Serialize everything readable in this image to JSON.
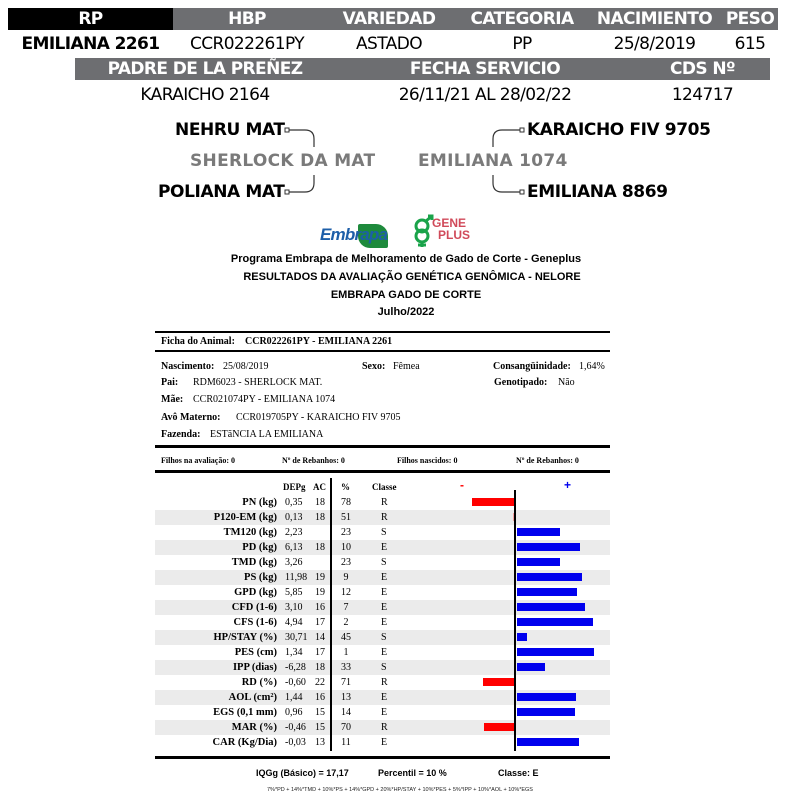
{
  "header": {
    "row1_labels": [
      "RP",
      "HBP",
      "VARIEDAD",
      "CATEGORIA",
      "NACIMIENTO",
      "PESO"
    ],
    "row1_values": [
      "EMILIANA 2261",
      "CCR022261PY",
      "ASTADO",
      "PP",
      "25/8/2019",
      "615"
    ],
    "row2_labels": [
      "PADRE DE LA PREÑEZ",
      "FECHA SERVICIO",
      "CDS Nº"
    ],
    "row2_values": [
      "KARAICHO 2164",
      "26/11/21 AL 28/02/22",
      "124717"
    ]
  },
  "pedigree": {
    "sire": "SHERLOCK DA MAT",
    "sire_sire": "NEHRU MAT",
    "sire_dam": "POLIANA MAT",
    "dam": "EMILIANA 1074",
    "dam_sire": "KARAICHO FIV 9705",
    "dam_dam": "EMILIANA 8869"
  },
  "logos": {
    "embrapa": "Embrapa",
    "geneplus_1": "GENE",
    "geneplus_2": "PLUS"
  },
  "titles": [
    "Programa Embrapa de Melhoramento de Gado de Corte - Geneplus",
    "RESULTADOS DA AVALIAÇÃO GENÉTICA GENÔMICA - NELORE",
    "EMBRAPA GADO DE CORTE",
    "Julho/2022"
  ],
  "ficha": {
    "label": "Ficha do Animal:",
    "value": "CCR022261PY - EMILIANA 2261",
    "nascimento_label": "Nascimento:",
    "nascimento": "25/08/2019",
    "sexo_label": "Sexo:",
    "sexo": "Fêmea",
    "consang_label": "Consangüinidade:",
    "consang": "1,64%",
    "pai_label": "Pai:",
    "pai": "RDM6023 - SHERLOCK MAT.",
    "genotipado_label": "Genotipado:",
    "genotipado": "Não",
    "mae_label": "Mãe:",
    "mae": "CCR021074PY - EMILIANA 1074",
    "avo_label": "Avô Materno:",
    "avo": "CCR019705PY - KARAICHO FIV 9705",
    "fazenda_label": "Fazenda:",
    "fazenda": "ESTãNCIA LA EMILIANA"
  },
  "filhos": [
    "Filhos na avaliação: 0",
    "Nº de Rebanhos: 0",
    "Filhos nascidos: 0",
    "Nº de Rebanhos: 0"
  ],
  "table": {
    "headers": {
      "depg": "DEPg",
      "ac": "AC",
      "pct": "%",
      "classe": "Classe",
      "minus": "-",
      "plus": "+"
    },
    "colors": {
      "negative": "#ff0000",
      "positive": "#0000ee"
    },
    "rows": [
      {
        "trait": "PN (kg)",
        "depg": "0,35",
        "ac": "18",
        "pct": "78",
        "classe": "R",
        "bar": -0.47
      },
      {
        "trait": "P120-EM (kg)",
        "depg": "0,13",
        "ac": "18",
        "pct": "51",
        "classe": "R",
        "bar": -0.01
      },
      {
        "trait": "TM120 (kg)",
        "depg": "2,23",
        "ac": "",
        "pct": "23",
        "classe": "S",
        "bar": 0.48
      },
      {
        "trait": "PD (kg)",
        "depg": "6,13",
        "ac": "18",
        "pct": "10",
        "classe": "E",
        "bar": 0.7
      },
      {
        "trait": "TMD (kg)",
        "depg": "3,26",
        "ac": "",
        "pct": "23",
        "classe": "S",
        "bar": 0.48
      },
      {
        "trait": "PS (kg)",
        "depg": "11,98",
        "ac": "19",
        "pct": "9",
        "classe": "E",
        "bar": 0.72
      },
      {
        "trait": "GPD (kg)",
        "depg": "5,85",
        "ac": "19",
        "pct": "12",
        "classe": "E",
        "bar": 0.67
      },
      {
        "trait": "CFD (1-6)",
        "depg": "3,10",
        "ac": "16",
        "pct": "7",
        "classe": "E",
        "bar": 0.75
      },
      {
        "trait": "CFS (1-6)",
        "depg": "4,94",
        "ac": "17",
        "pct": "2",
        "classe": "E",
        "bar": 0.84
      },
      {
        "trait": "HP/STAY (%)",
        "depg": "30,71",
        "ac": "14",
        "pct": "45",
        "classe": "S",
        "bar": 0.11
      },
      {
        "trait": "PES (cm)",
        "depg": "1,34",
        "ac": "17",
        "pct": "1",
        "classe": "E",
        "bar": 0.86
      },
      {
        "trait": "IPP (dias)",
        "depg": "-6,28",
        "ac": "18",
        "pct": "33",
        "classe": "S",
        "bar": 0.31
      },
      {
        "trait": "RD (%)",
        "depg": "-0,60",
        "ac": "22",
        "pct": "71",
        "classe": "R",
        "bar": -0.35
      },
      {
        "trait": "AOL (cm²)",
        "depg": "1,44",
        "ac": "16",
        "pct": "13",
        "classe": "E",
        "bar": 0.65
      },
      {
        "trait": "EGS (0,1 mm)",
        "depg": "0,96",
        "ac": "15",
        "pct": "14",
        "classe": "E",
        "bar": 0.64
      },
      {
        "trait": "MAR (%)",
        "depg": "-0,46",
        "ac": "15",
        "pct": "70",
        "classe": "R",
        "bar": -0.33
      },
      {
        "trait": "CAR (Kg/Dia)",
        "depg": "-0,03",
        "ac": "13",
        "pct": "11",
        "classe": "E",
        "bar": 0.69
      }
    ]
  },
  "summary": {
    "iqgg": "IQGg (Básico) = 17,17",
    "percentil": "Percentil = 10 %",
    "classe": "Classe: E",
    "formula": "7%*PD + 14%*TMD + 10%*PS + 14%*GPD + 20%*HP/STAY + 10%*PES + 5%*IPP + 10%*AOL + 10%*EGS"
  }
}
